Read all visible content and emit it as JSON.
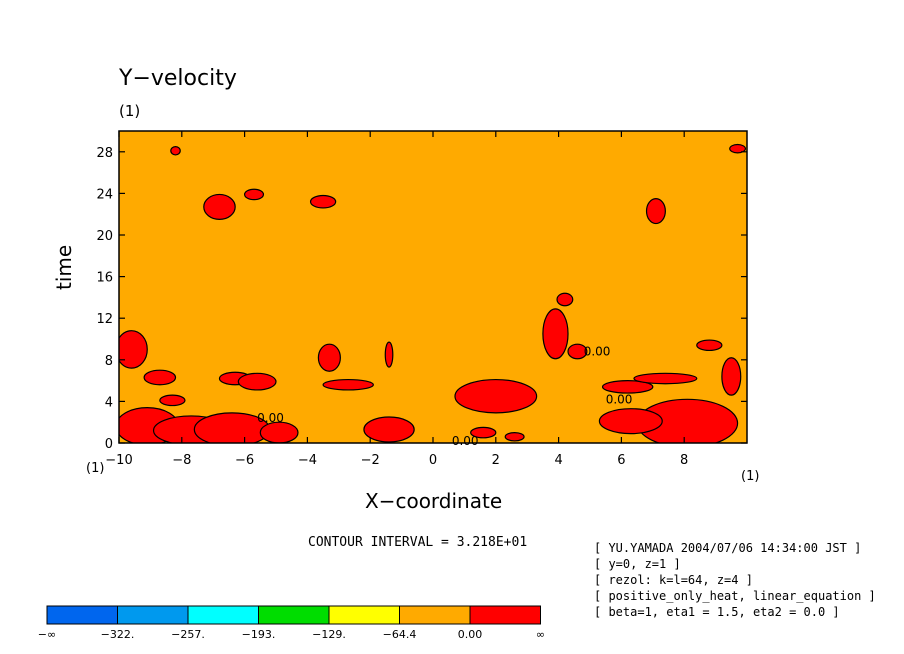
{
  "chart_data": {
    "type": "heatmap",
    "title": "Y−velocity",
    "unit_label": "(1)",
    "xlabel": "X−coordinate",
    "ylabel": "time",
    "xlim": [
      -10,
      9.8
    ],
    "ylim": [
      0,
      30
    ],
    "x_ticks": [
      -10,
      -8,
      -6,
      -4,
      -2,
      0,
      2,
      4,
      6,
      8
    ],
    "x_tick_labels": [
      "−10",
      "−8",
      "−6",
      "−4",
      "−2",
      "0",
      "2",
      "4",
      "6",
      "8"
    ],
    "y_ticks": [
      0,
      4,
      8,
      12,
      16,
      20,
      24,
      28
    ],
    "y_tick_labels": [
      "0",
      "4",
      "8",
      "12",
      "16",
      "20",
      "24",
      "28"
    ],
    "background_level": "−64.4 to 0.00",
    "contour_labels": [
      {
        "text": "0.00",
        "x": -5.6,
        "y": 2.4
      },
      {
        "text": "0.00",
        "x": 0.6,
        "y": 0.2
      },
      {
        "text": "0.00",
        "x": 4.8,
        "y": 8.8
      },
      {
        "text": "0.00",
        "x": 5.5,
        "y": 4.2
      }
    ],
    "positive_regions": [
      {
        "x": -9.1,
        "y": 1.6,
        "rx": 1.0,
        "ry": 1.8
      },
      {
        "x": -7.7,
        "y": 1.2,
        "rx": 1.2,
        "ry": 1.4
      },
      {
        "x": -6.4,
        "y": 1.3,
        "rx": 1.2,
        "ry": 1.6
      },
      {
        "x": -4.9,
        "y": 1.0,
        "rx": 0.6,
        "ry": 1.0
      },
      {
        "x": -9.6,
        "y": 9.0,
        "rx": 0.5,
        "ry": 1.8
      },
      {
        "x": -8.7,
        "y": 6.3,
        "rx": 0.5,
        "ry": 0.7
      },
      {
        "x": -8.3,
        "y": 4.1,
        "rx": 0.4,
        "ry": 0.5
      },
      {
        "x": -6.3,
        "y": 6.2,
        "rx": 0.5,
        "ry": 0.6
      },
      {
        "x": -5.6,
        "y": 5.9,
        "rx": 0.6,
        "ry": 0.8
      },
      {
        "x": -3.3,
        "y": 8.2,
        "rx": 0.35,
        "ry": 1.3
      },
      {
        "x": -2.7,
        "y": 5.6,
        "rx": 0.8,
        "ry": 0.5
      },
      {
        "x": -1.4,
        "y": 1.3,
        "rx": 0.8,
        "ry": 1.2
      },
      {
        "x": -1.4,
        "y": 8.5,
        "rx": 0.12,
        "ry": 1.2
      },
      {
        "x": -6.8,
        "y": 22.7,
        "rx": 0.5,
        "ry": 1.2
      },
      {
        "x": -5.7,
        "y": 23.9,
        "rx": 0.3,
        "ry": 0.5
      },
      {
        "x": -3.5,
        "y": 23.2,
        "rx": 0.4,
        "ry": 0.6
      },
      {
        "x": 2.0,
        "y": 4.5,
        "rx": 1.3,
        "ry": 1.6
      },
      {
        "x": 1.6,
        "y": 1.0,
        "rx": 0.4,
        "ry": 0.5
      },
      {
        "x": 2.6,
        "y": 0.6,
        "rx": 0.3,
        "ry": 0.4
      },
      {
        "x": 3.9,
        "y": 10.5,
        "rx": 0.4,
        "ry": 2.4
      },
      {
        "x": 4.2,
        "y": 13.8,
        "rx": 0.25,
        "ry": 0.6
      },
      {
        "x": 4.6,
        "y": 8.8,
        "rx": 0.3,
        "ry": 0.7
      },
      {
        "x": 6.2,
        "y": 5.4,
        "rx": 0.8,
        "ry": 0.6
      },
      {
        "x": 7.4,
        "y": 6.2,
        "rx": 1.0,
        "ry": 0.5
      },
      {
        "x": 8.1,
        "y": 1.9,
        "rx": 1.6,
        "ry": 2.3
      },
      {
        "x": 6.3,
        "y": 2.1,
        "rx": 1.0,
        "ry": 1.2
      },
      {
        "x": 9.5,
        "y": 6.4,
        "rx": 0.3,
        "ry": 1.8
      },
      {
        "x": 8.8,
        "y": 9.4,
        "rx": 0.4,
        "ry": 0.5
      },
      {
        "x": 7.1,
        "y": 22.3,
        "rx": 0.3,
        "ry": 1.2
      },
      {
        "x": 9.7,
        "y": 28.3,
        "rx": 0.25,
        "ry": 0.4
      },
      {
        "x": -8.2,
        "y": 28.1,
        "rx": 0.15,
        "ry": 0.4
      }
    ],
    "color_levels": [
      "−∞",
      "−322.",
      "−257.",
      "−193.",
      "−129.",
      "−64.4",
      "0.00",
      "∞"
    ],
    "color_swatches": [
      "#0066ee",
      "#0099ee",
      "#00ffff",
      "#00dd00",
      "#ffff00",
      "#ffaa00",
      "#ff0000"
    ],
    "contour_interval": "CONTOUR INTERVAL = 3.218E+01"
  },
  "info_lines": [
    "[ YU.YAMADA 2004/07/06 14:34:00 JST ]",
    "[ y=0, z=1 ]",
    "[ rezol: k=l=64, z=4 ]",
    "[ positive_only_heat, linear_equation ]",
    "[ beta=1, eta1 = 1.5, eta2 = 0.0 ]"
  ]
}
